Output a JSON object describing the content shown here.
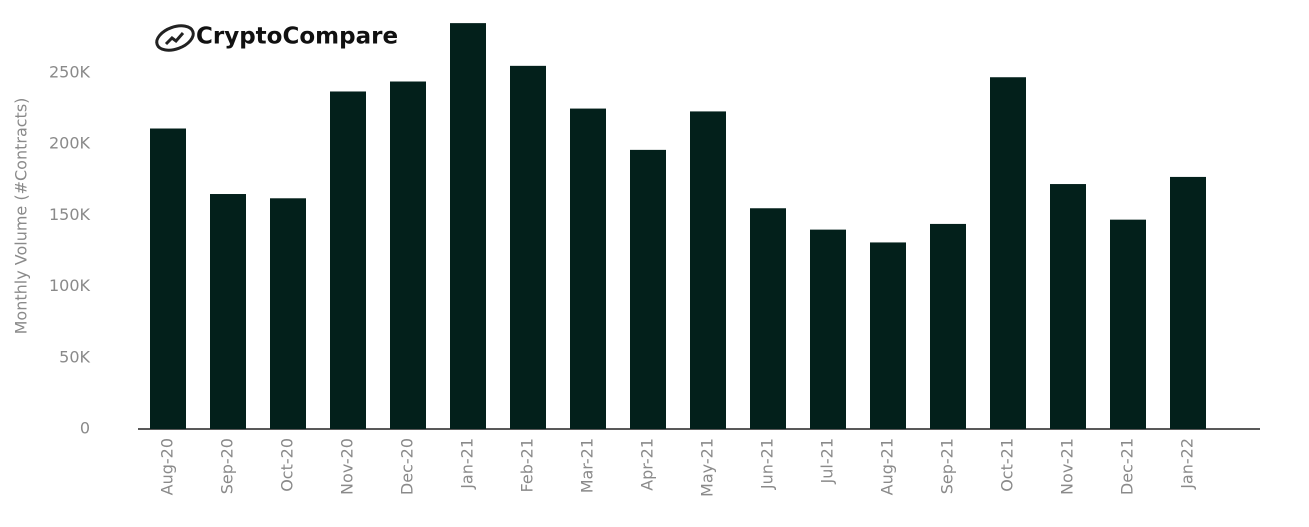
{
  "chart_data": {
    "type": "bar",
    "logo": "CryptoCompare",
    "y_label": "Monthly Volume (#Contracts)",
    "categories": [
      "Aug-20",
      "Sep-20",
      "Oct-20",
      "Nov-20",
      "Dec-20",
      "Jan-21",
      "Feb-21",
      "Mar-21",
      "Apr-21",
      "May-21",
      "Jun-21",
      "Jul-21",
      "Aug-21",
      "Sep-21",
      "Oct-21",
      "Nov-21",
      "Dec-21",
      "Jan-22"
    ],
    "values": [
      211000,
      165000,
      162000,
      237000,
      244000,
      285000,
      255000,
      225000,
      196000,
      223000,
      155000,
      140000,
      131000,
      144000,
      247000,
      172000,
      147000,
      177000
    ],
    "color": "#03201b",
    "ylim": [
      0,
      290000
    ],
    "yticks": [
      0,
      {
        "value": 50000,
        "label": "50K"
      },
      {
        "value": 100000,
        "label": "100K"
      },
      {
        "value": 150000,
        "label": "150K"
      },
      {
        "value": 200000,
        "label": "200K"
      },
      {
        "value": 250000,
        "label": "250K"
      }
    ],
    "grid": false
  }
}
